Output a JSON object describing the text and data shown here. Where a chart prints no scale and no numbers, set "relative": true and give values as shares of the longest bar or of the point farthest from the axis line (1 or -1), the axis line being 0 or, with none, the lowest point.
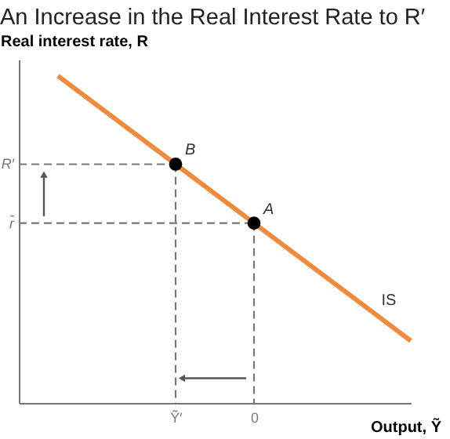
{
  "chart_data": {
    "type": "line",
    "title": "An Increase in the Real Interest Rate to R′",
    "xlabel": "Output, Ỹ",
    "ylabel": "Real interest rate, R",
    "relative": true,
    "categories": [
      null,
      null,
      null,
      null,
      "Ỹ′",
      null,
      "0",
      null,
      null,
      null,
      null
    ],
    "series": [
      {
        "name": "IS",
        "color": "#f08a3c",
        "values": [
          null,
          1,
          0.91,
          0.82,
          0.73,
          0.64,
          0.55,
          0.46,
          0.37,
          0.28,
          0.19
        ]
      },
      {
        "type": "scatter",
        "color": "#000000",
        "marker": "circle",
        "values": [
          null,
          null,
          null,
          null,
          0.73,
          null,
          0.55,
          null,
          null,
          null,
          null
        ]
      }
    ],
    "annotations": [
      {
        "text": "B",
        "x": "Ỹ′",
        "y": 0.73
      },
      {
        "text": "A",
        "x": "0",
        "y": 0.55
      },
      "R′",
      "r̄"
    ]
  }
}
